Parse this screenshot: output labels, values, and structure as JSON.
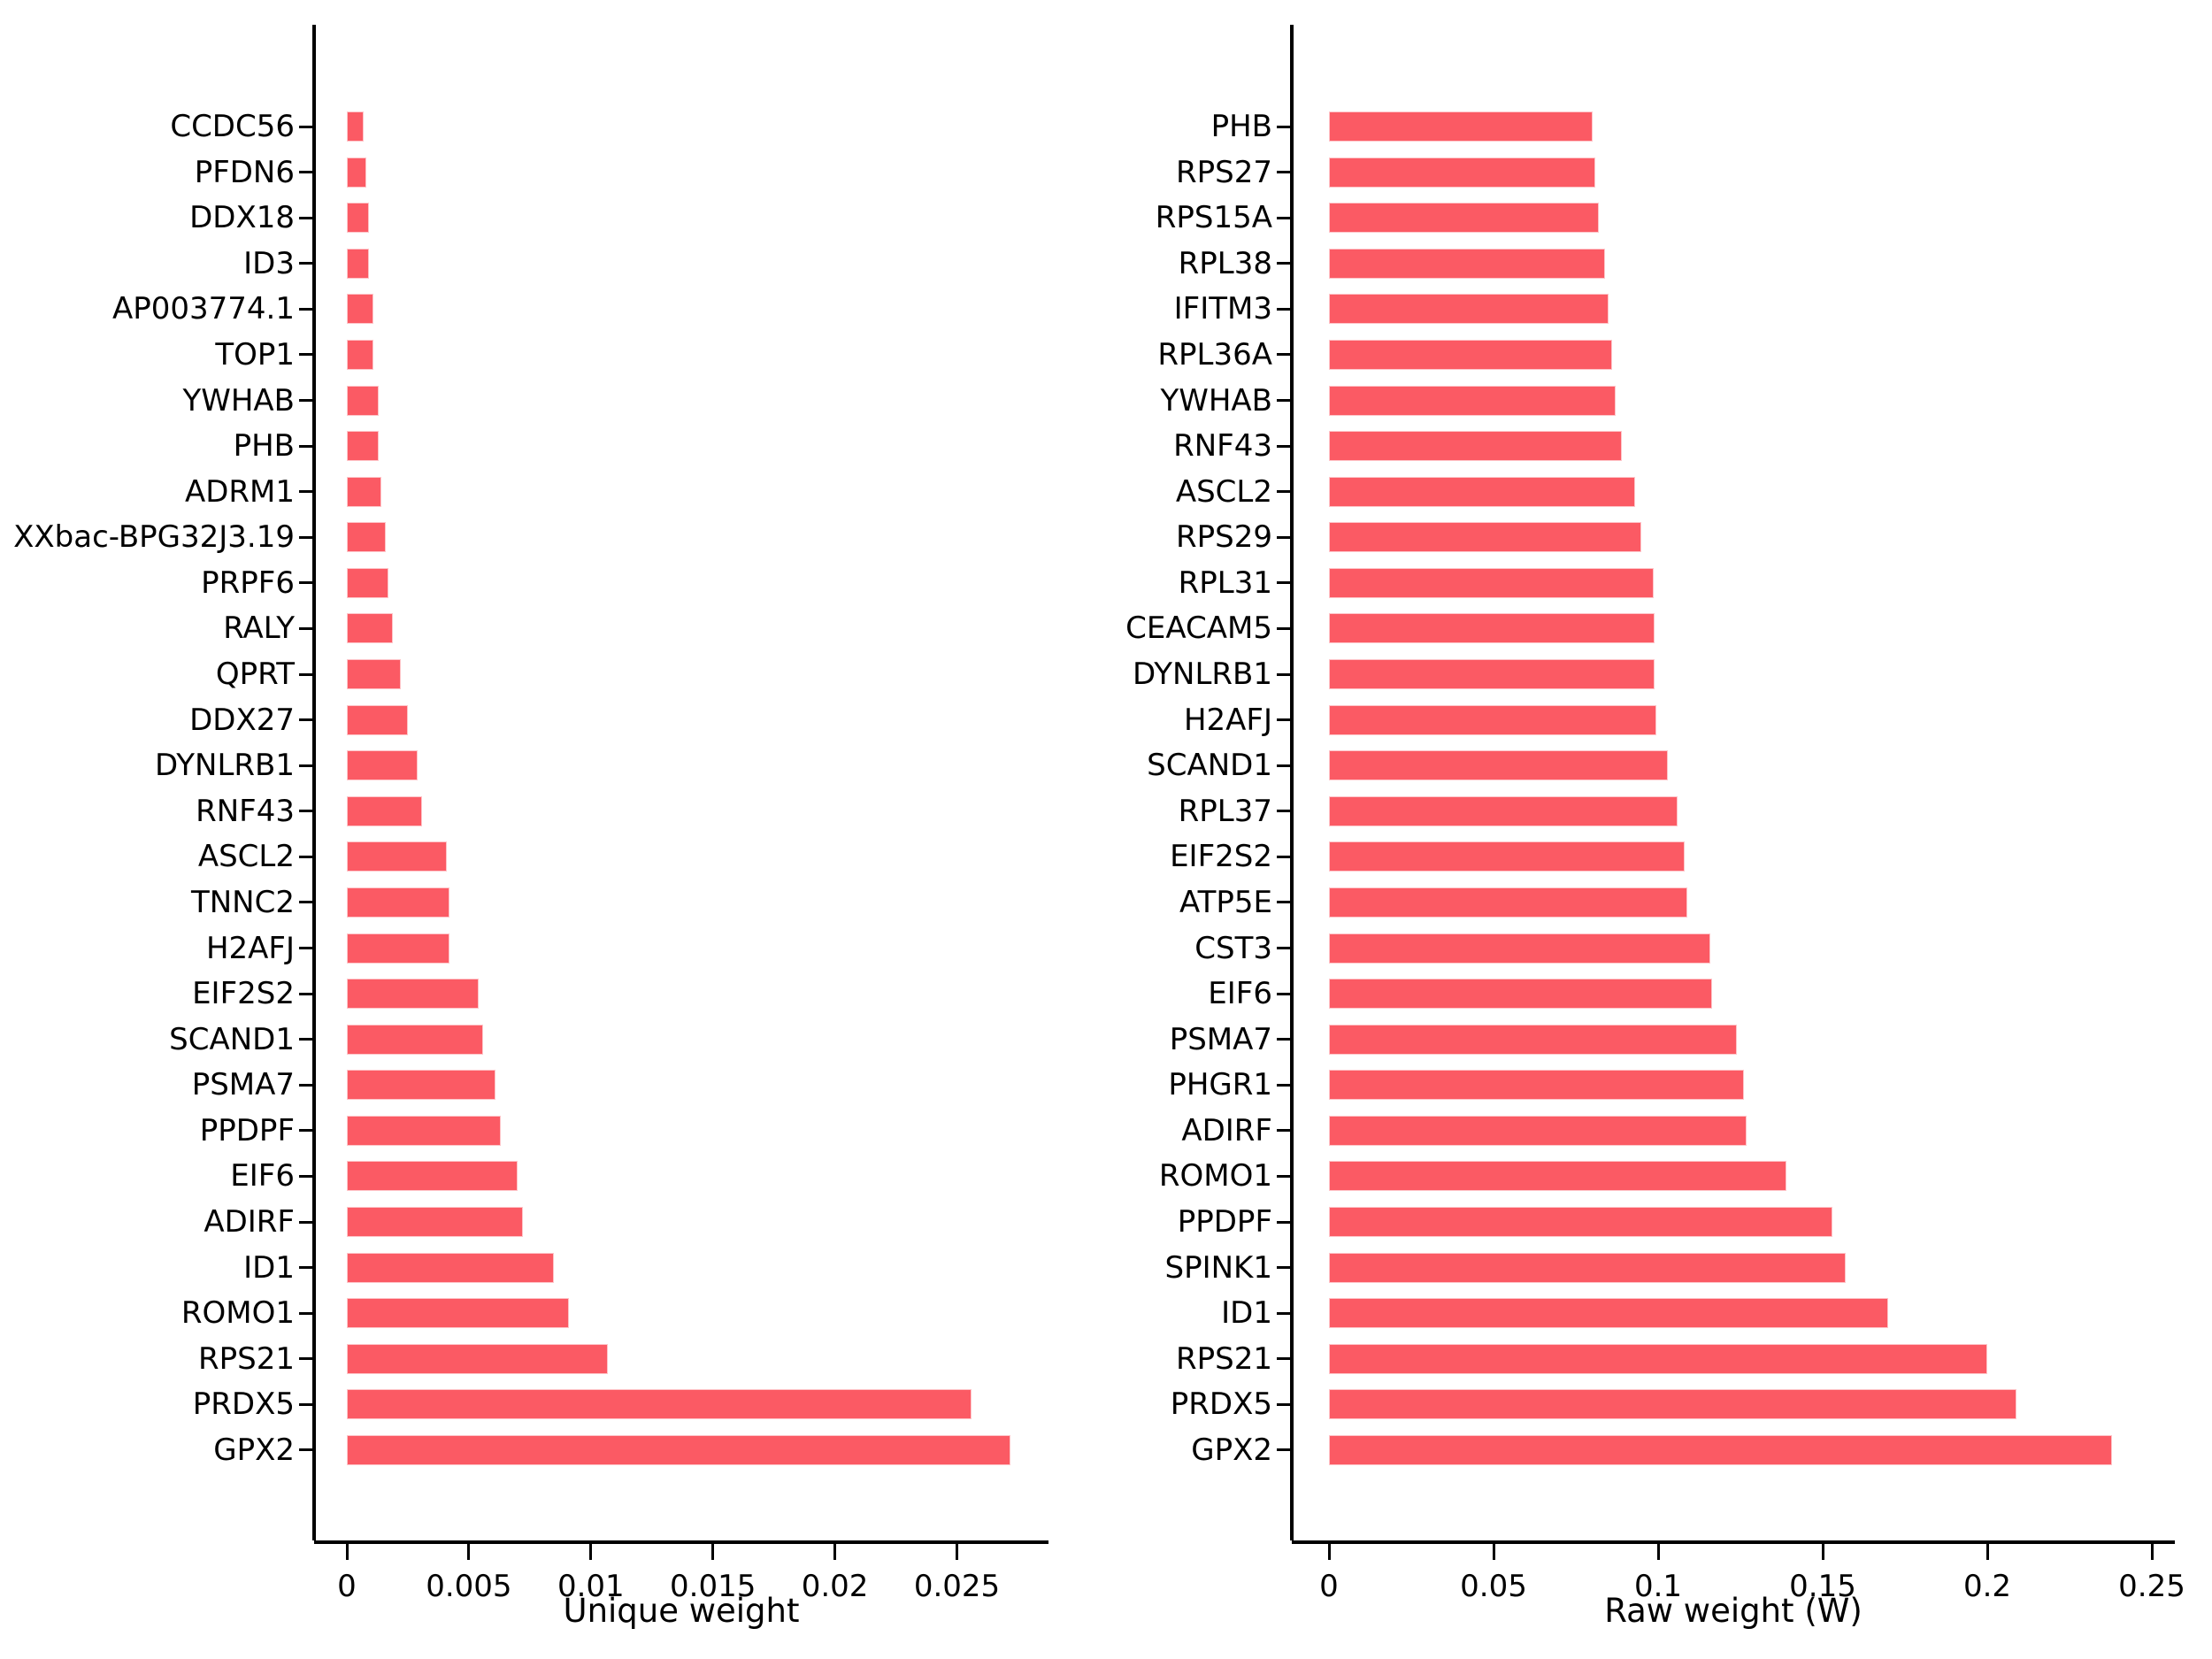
{
  "figure": {
    "bar_color": "#FB5A64",
    "background_color": "#FFFFFF",
    "text_color": "#000000"
  },
  "chart_data": [
    {
      "type": "bar",
      "orientation": "horizontal",
      "title": "",
      "xlabel": "Unique weight",
      "ylabel": "",
      "grid": false,
      "legend": false,
      "categories": [
        "CCDC56",
        "PFDN6",
        "DDX18",
        "ID3",
        "AP003774.1",
        "TOP1",
        "YWHAB",
        "PHB",
        "ADRM1",
        "XXbac-BPG32J3.19",
        "PRPF6",
        "RALY",
        "QPRT",
        "DDX27",
        "DYNLRB1",
        "RNF43",
        "ASCL2",
        "TNNC2",
        "H2AFJ",
        "EIF2S2",
        "SCAND1",
        "PSMA7",
        "PPDPF",
        "EIF6",
        "ADIRF",
        "ID1",
        "ROMO1",
        "RPS21",
        "PRDX5",
        "GPX2"
      ],
      "values": [
        0.0007,
        0.0008,
        0.0009,
        0.0009,
        0.0011,
        0.0011,
        0.0013,
        0.0013,
        0.0014,
        0.0016,
        0.0017,
        0.0019,
        0.0022,
        0.0025,
        0.0029,
        0.0031,
        0.0041,
        0.0042,
        0.0042,
        0.0054,
        0.0056,
        0.0061,
        0.0063,
        0.007,
        0.0072,
        0.0085,
        0.0091,
        0.0107,
        0.0256,
        0.0272
      ],
      "xticks": [
        0,
        0.005,
        0.01,
        0.015,
        0.02,
        0.025
      ],
      "xtick_labels": [
        "0",
        "0.005",
        "0.01",
        "0.015",
        "0.02",
        "0.025"
      ],
      "xlim": [
        0,
        0.0288
      ]
    },
    {
      "type": "bar",
      "orientation": "horizontal",
      "title": "",
      "xlabel": "Raw weight (W)",
      "ylabel": "",
      "grid": false,
      "legend": false,
      "categories": [
        "PHB",
        "RPS27",
        "RPS15A",
        "RPL38",
        "IFITM3",
        "RPL36A",
        "YWHAB",
        "RNF43",
        "ASCL2",
        "RPS29",
        "RPL31",
        "CEACAM5",
        "DYNLRB1",
        "H2AFJ",
        "SCAND1",
        "RPL37",
        "EIF2S2",
        "ATP5E",
        "CST3",
        "EIF6",
        "PSMA7",
        "PHGR1",
        "ADIRF",
        "ROMO1",
        "PPDPF",
        "SPINK1",
        "ID1",
        "RPS21",
        "PRDX5",
        "GPX2"
      ],
      "values": [
        0.08,
        0.081,
        0.082,
        0.084,
        0.085,
        0.086,
        0.087,
        0.089,
        0.093,
        0.095,
        0.0987,
        0.0988,
        0.099,
        0.0994,
        0.103,
        0.106,
        0.108,
        0.109,
        0.1158,
        0.1165,
        0.124,
        0.126,
        0.127,
        0.139,
        0.153,
        0.157,
        0.17,
        0.2,
        0.209,
        0.238
      ],
      "xticks": [
        0,
        0.05,
        0.1,
        0.15,
        0.2,
        0.25
      ],
      "xtick_labels": [
        "0",
        "0.05",
        "0.1",
        "0.15",
        "0.2",
        "0.25"
      ],
      "xlim": [
        0,
        0.257
      ]
    }
  ]
}
